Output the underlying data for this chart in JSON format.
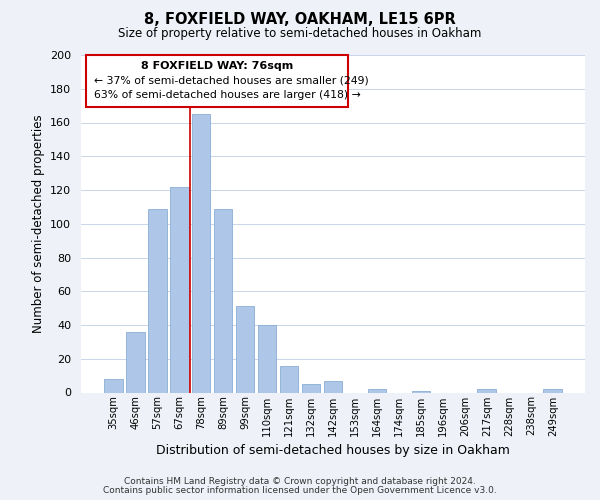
{
  "title": "8, FOXFIELD WAY, OAKHAM, LE15 6PR",
  "subtitle": "Size of property relative to semi-detached houses in Oakham",
  "xlabel": "Distribution of semi-detached houses by size in Oakham",
  "ylabel": "Number of semi-detached properties",
  "categories": [
    "35sqm",
    "46sqm",
    "57sqm",
    "67sqm",
    "78sqm",
    "89sqm",
    "99sqm",
    "110sqm",
    "121sqm",
    "132sqm",
    "142sqm",
    "153sqm",
    "164sqm",
    "174sqm",
    "185sqm",
    "196sqm",
    "206sqm",
    "217sqm",
    "228sqm",
    "238sqm",
    "249sqm"
  ],
  "values": [
    8,
    36,
    109,
    122,
    165,
    109,
    51,
    40,
    16,
    5,
    7,
    0,
    2,
    0,
    1,
    0,
    0,
    2,
    0,
    0,
    2
  ],
  "bar_color": "#aec6e8",
  "bar_edge_color": "#8aafd4",
  "highlight_bar_index": 4,
  "highlight_color": "#cc0000",
  "ylim": [
    0,
    200
  ],
  "yticks": [
    0,
    20,
    40,
    60,
    80,
    100,
    120,
    140,
    160,
    180,
    200
  ],
  "annotation_title": "8 FOXFIELD WAY: 76sqm",
  "annotation_line1": "← 37% of semi-detached houses are smaller (249)",
  "annotation_line2": "63% of semi-detached houses are larger (418) →",
  "annotation_box_color": "#ffffff",
  "annotation_box_edge": "#cc0000",
  "footer1": "Contains HM Land Registry data © Crown copyright and database right 2024.",
  "footer2": "Contains public sector information licensed under the Open Government Licence v3.0.",
  "background_color": "#eef2f8",
  "plot_background": "#ffffff",
  "grid_color": "#c8d4e8"
}
